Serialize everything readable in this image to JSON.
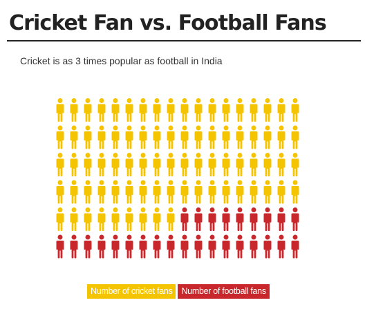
{
  "title": "Cricket Fan vs. Football Fans",
  "subtitle": "Cricket is as 3 times popular as football in India",
  "chart_data": {
    "type": "pictogram",
    "title": "Cricket Fan vs. Football Fans",
    "subtitle": "Cricket is as 3 times popular as football in India",
    "rows": 6,
    "columns": 18,
    "series": [
      {
        "name": "Number of cricket fans",
        "count": 81,
        "color": "#f5c400"
      },
      {
        "name": "Number of football fans",
        "count": 27,
        "color": "#c8282b"
      }
    ],
    "legend_position": "bottom-center"
  },
  "legend": [
    {
      "label": "Number of cricket fans",
      "color": "#f5c400"
    },
    {
      "label": "Number of football fans",
      "color": "#c8282b"
    }
  ]
}
